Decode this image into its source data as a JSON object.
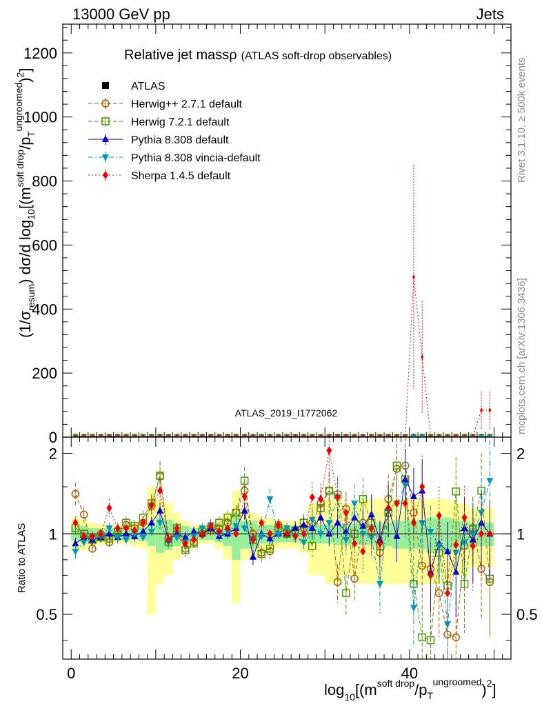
{
  "header": {
    "left": "13000 GeV pp",
    "right": "Jets"
  },
  "side_labels": {
    "rivet": "Rivet 3.1.10, ≥ 500k events",
    "mcplots": "mcplots.cern.ch [arXiv:1306.3436]"
  },
  "chart_data": {
    "type": "line",
    "title": "Relative jet massρ (ATLAS soft-drop observables)",
    "title_main": "Relative jet massρ",
    "title_sub": "(ATLAS soft-drop observables)",
    "analysis_tag": "ATLAS_2019_I1772062",
    "xlabel": "log10[(m^{soft drop}/p_T^{ungroomed})^2]",
    "ylabel_main": "(1/σ_resum) dσ/d log10[(m^{soft drop}/p_T^{ungroomed})^2]",
    "ylabel_ratio": "Ratio to ATLAS",
    "xlim": [
      -1,
      52
    ],
    "ylim_main": [
      0,
      1290
    ],
    "ylim_ratio": [
      0.34,
      2.3
    ],
    "x_ticks": [
      "0",
      "20",
      "40"
    ],
    "y_ticks_main": [
      "0",
      "200",
      "400",
      "600",
      "800",
      "1000",
      "1200"
    ],
    "y_ticks_ratio": [
      "0.5",
      "1",
      "2"
    ],
    "bins_x": [
      0.5,
      1.5,
      2.5,
      3.5,
      4.5,
      5.5,
      6.5,
      7.5,
      8.5,
      9.5,
      10.5,
      11.5,
      12.5,
      13.5,
      14.5,
      15.5,
      16.5,
      17.5,
      18.5,
      19.5,
      20.5,
      21.5,
      22.5,
      23.5,
      24.5,
      25.5,
      26.5,
      27.5,
      28.5,
      29.5,
      30.5,
      31.5,
      32.5,
      33.5,
      34.5,
      35.5,
      36.5,
      37.5,
      38.5,
      39.5,
      40.5,
      41.5,
      42.5,
      43.5,
      44.5,
      45.5,
      46.5,
      47.5,
      48.5,
      49.5
    ],
    "band_inner": [
      0.06,
      0.07,
      0.05,
      0.05,
      0.05,
      0.05,
      0.05,
      0.05,
      0.06,
      0.1,
      0.15,
      0.13,
      0.1,
      0.07,
      0.05,
      0.05,
      0.05,
      0.07,
      0.1,
      0.2,
      0.12,
      0.12,
      0.08,
      0.08,
      0.07,
      0.07,
      0.07,
      0.08,
      0.08,
      0.08,
      0.08,
      0.09,
      0.09,
      0.09,
      0.09,
      0.09,
      0.1,
      0.1,
      0.12,
      0.12,
      0.12,
      0.12,
      0.15,
      0.15,
      0.15,
      0.12,
      0.12,
      0.1,
      0.1,
      0.1
    ],
    "band_outer": [
      0.15,
      0.13,
      0.1,
      0.09,
      0.08,
      0.08,
      0.08,
      0.1,
      0.12,
      0.5,
      0.35,
      0.3,
      0.2,
      0.12,
      0.08,
      0.08,
      0.08,
      0.12,
      0.2,
      0.45,
      0.2,
      0.2,
      0.15,
      0.15,
      0.12,
      0.12,
      0.12,
      0.15,
      0.3,
      0.3,
      0.35,
      0.35,
      0.3,
      0.3,
      0.35,
      0.35,
      0.35,
      0.35,
      0.35,
      0.35,
      0.35,
      0.35,
      0.35,
      0.35,
      0.35,
      0.3,
      0.3,
      0.25,
      0.25,
      0.25
    ],
    "series": [
      {
        "name": "ATLAS",
        "style": "data",
        "color": "#000000",
        "marker": "square",
        "main": [
          2,
          2,
          2,
          2,
          2,
          2,
          2,
          2,
          2,
          2,
          2,
          2,
          2,
          2,
          2,
          2,
          2,
          2,
          2,
          2,
          2,
          2,
          2,
          2,
          2,
          2,
          2,
          2,
          2,
          2,
          2,
          2,
          2,
          2,
          2,
          2,
          2,
          2,
          2,
          2,
          2,
          2,
          2,
          2,
          2,
          2,
          2,
          2,
          2,
          2
        ]
      },
      {
        "name": "Herwig++ 2.7.1 default",
        "style": "dashed",
        "color": "#b35900",
        "marker": "circle-open",
        "main": [
          2,
          2,
          2,
          2,
          2,
          2,
          2,
          2,
          2,
          2,
          2,
          2,
          2,
          2,
          2,
          2,
          2,
          2,
          2,
          2,
          2,
          2,
          2,
          2,
          2,
          2,
          2,
          2,
          2,
          2,
          2,
          2,
          2,
          2,
          2,
          2,
          2,
          2,
          2,
          2,
          2,
          2,
          2,
          2,
          2,
          2,
          2,
          2,
          2,
          2
        ],
        "ratio": [
          1.41,
          1.18,
          0.88,
          1.0,
          0.93,
          1.0,
          1.08,
          1.05,
          1.1,
          1.27,
          1.64,
          0.97,
          1.0,
          0.88,
          0.93,
          1.0,
          1.03,
          1.05,
          1.1,
          1.2,
          1.45,
          1.0,
          0.85,
          0.86,
          1.08,
          1.02,
          1.03,
          1.05,
          1.1,
          1.3,
          1.45,
          0.66,
          1.24,
          0.68,
          1.1,
          1.02,
          0.85,
          1.35,
          1.75,
          1.8,
          1.2,
          0.76,
          0.74,
          0.6,
          0.42,
          0.41,
          0.9,
          1.05,
          0.74,
          0.66
        ]
      },
      {
        "name": "Herwig 7.2.1 default",
        "style": "dashed",
        "color": "#4d9900",
        "marker": "square-open",
        "main": [
          2,
          2,
          2,
          2,
          2,
          2,
          2,
          2,
          2,
          2,
          2,
          2,
          2,
          2,
          2,
          2,
          2,
          2,
          2,
          2,
          2,
          2,
          2,
          2,
          2,
          2,
          2,
          2,
          2,
          2,
          2,
          2,
          2,
          2,
          2,
          2,
          2,
          2,
          2,
          2,
          2,
          2,
          2,
          2,
          2,
          2,
          2,
          2,
          2,
          2
        ],
        "ratio": [
          1.05,
          1.0,
          0.95,
          0.97,
          0.96,
          1.02,
          1.1,
          1.07,
          1.15,
          1.3,
          1.65,
          0.93,
          1.05,
          0.87,
          0.92,
          1.02,
          1.05,
          1.1,
          1.15,
          1.2,
          1.58,
          0.95,
          0.84,
          0.88,
          1.05,
          1.0,
          1.03,
          1.1,
          0.9,
          1.25,
          1.45,
          1.4,
          0.6,
          1.0,
          1.35,
          1.1,
          0.9,
          1.2,
          1.8,
          1.6,
          0.65,
          0.41,
          0.4,
          0.85,
          0.64,
          1.44,
          0.65,
          1.04,
          1.45,
          0.68
        ]
      },
      {
        "name": "Pythia 8.308 default",
        "style": "solid",
        "color": "#0000cc",
        "marker": "triangle-up",
        "main": [
          2,
          2,
          2,
          2,
          2,
          2,
          2,
          2,
          2,
          2,
          2,
          2,
          2,
          2,
          2,
          2,
          2,
          2,
          2,
          2,
          2,
          2,
          2,
          2,
          2,
          2,
          2,
          2,
          2,
          2,
          2,
          2,
          2,
          2,
          2,
          2,
          2,
          2,
          2,
          2,
          2,
          2,
          2,
          2,
          2,
          2,
          2,
          2,
          2,
          2
        ],
        "ratio": [
          0.92,
          0.97,
          0.95,
          0.97,
          1.0,
          0.97,
          1.0,
          0.98,
          1.02,
          1.1,
          1.22,
          0.95,
          1.0,
          0.97,
          1.02,
          1.0,
          1.05,
          0.98,
          1.0,
          1.05,
          1.22,
          0.82,
          1.0,
          0.96,
          1.0,
          1.0,
          1.05,
          1.08,
          1.05,
          1.15,
          1.0,
          1.1,
          1.02,
          1.15,
          1.07,
          1.18,
          0.95,
          1.25,
          0.98,
          1.6,
          1.38,
          1.45,
          0.72,
          0.92,
          0.86,
          0.72,
          1.05,
          0.95,
          1.1,
          1.0
        ]
      },
      {
        "name": "Pythia 8.308 vincia-default",
        "style": "dashdot",
        "color": "#0099bb",
        "marker": "triangle-down",
        "main": [
          2,
          2,
          2,
          2,
          2,
          2,
          2,
          2,
          2,
          2,
          2,
          2,
          2,
          2,
          2,
          2,
          2,
          2,
          2,
          2,
          2,
          2,
          2,
          2,
          2,
          2,
          2,
          2,
          2,
          2,
          2,
          2,
          2,
          2,
          2,
          2,
          2,
          2,
          2,
          2,
          2,
          2,
          2,
          2,
          2,
          2,
          2,
          2,
          2,
          2
        ],
        "ratio": [
          0.86,
          0.93,
          0.97,
          0.98,
          1.05,
          0.97,
          0.95,
          1.0,
          0.97,
          1.02,
          1.1,
          0.93,
          0.97,
          0.93,
          0.98,
          1.05,
          1.08,
          1.0,
          1.02,
          1.07,
          1.05,
          0.95,
          0.98,
          1.35,
          1.0,
          1.05,
          0.98,
          0.93,
          1.13,
          1.0,
          1.1,
          1.37,
          0.95,
          1.3,
          1.0,
          0.97,
          0.65,
          1.22,
          1.3,
          1.52,
          0.53,
          1.1,
          1.02,
          0.9,
          0.46,
          0.85,
          0.93,
          1.0,
          1.2,
          1.58
        ]
      },
      {
        "name": "Sherpa 1.4.5 default",
        "style": "dotted",
        "color": "#ee0000",
        "marker": "diamond",
        "main": [
          2,
          2,
          2,
          2,
          2,
          2,
          2,
          2,
          2,
          2,
          2,
          2,
          2,
          2,
          2,
          2,
          2,
          2,
          2,
          2,
          2,
          2,
          2,
          2,
          2,
          2,
          2,
          2,
          2,
          2,
          2,
          2,
          2,
          2,
          2,
          2,
          2,
          2,
          2,
          2,
          500,
          250,
          2,
          2,
          2,
          2,
          2,
          2,
          84,
          84
        ],
        "ratio": [
          1.1,
          0.98,
          0.98,
          1.0,
          1.25,
          1.05,
          1.05,
          1.03,
          1.1,
          1.28,
          1.45,
          0.95,
          1.05,
          0.92,
          0.95,
          1.0,
          1.07,
          1.02,
          1.05,
          1.0,
          1.38,
          0.95,
          1.1,
          1.0,
          1.08,
          1.0,
          0.98,
          1.0,
          1.37,
          1.35,
          2.05,
          1.37,
          1.2,
          0.92,
          0.86,
          1.05,
          0.92,
          1.25,
          1.3,
          1.3,
          1.1,
          1.5,
          0.7,
          1.17,
          0.6,
          0.91,
          1.15,
          0.9,
          1.0,
          1.0
        ]
      }
    ],
    "legend": [
      "ATLAS",
      "Herwig++ 2.7.1 default",
      "Herwig 7.2.1 default",
      "Pythia 8.308 default",
      "Pythia 8.308 vincia-default",
      "Sherpa 1.4.5 default"
    ]
  }
}
